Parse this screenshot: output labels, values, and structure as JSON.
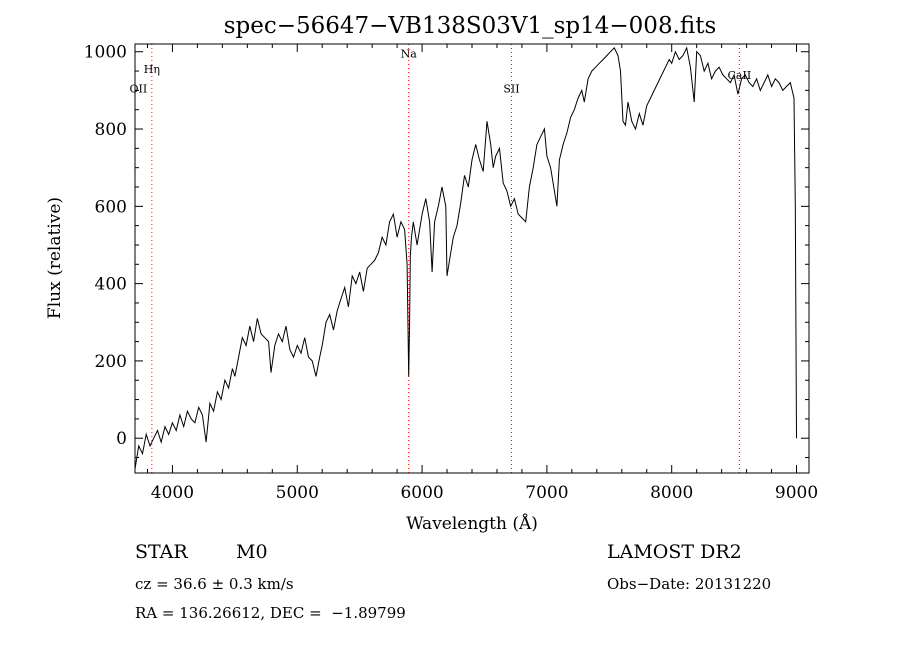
{
  "chart_data": {
    "type": "line",
    "title": "spec−56647−VB138S03V1_sp14−008.fits",
    "xlabel": "Wavelength (Å)",
    "ylabel": "Flux (relative)",
    "xlim": [
      3700,
      9100
    ],
    "ylim": [
      -90,
      1020
    ],
    "xticks": [
      4000,
      5000,
      6000,
      7000,
      8000,
      9000
    ],
    "yticks": [
      0,
      200,
      400,
      600,
      800,
      1000
    ],
    "grid": false,
    "series": [
      {
        "x": [
          3700,
          3730,
          3760,
          3790,
          3820,
          3850,
          3880,
          3910,
          3940,
          3970,
          4000,
          4030,
          4060,
          4090,
          4120,
          4150,
          4180,
          4210,
          4240,
          4270,
          4300,
          4330,
          4360,
          4390,
          4420,
          4450,
          4480,
          4500,
          4530,
          4560,
          4590,
          4620,
          4650,
          4680,
          4710,
          4740,
          4770,
          4790,
          4820,
          4850,
          4880,
          4910,
          4940,
          4970,
          5000,
          5030,
          5060,
          5090,
          5120,
          5150,
          5180,
          5200,
          5230,
          5260,
          5290,
          5320,
          5350,
          5380,
          5410,
          5440,
          5470,
          5500,
          5530,
          5560,
          5590,
          5620,
          5650,
          5680,
          5710,
          5740,
          5770,
          5800,
          5830,
          5860,
          5880,
          5893,
          5900,
          5906,
          5915,
          5930,
          5960,
          6000,
          6030,
          6060,
          6080,
          6100,
          6130,
          6160,
          6190,
          6200,
          6220,
          6250,
          6280,
          6310,
          6340,
          6370,
          6400,
          6430,
          6460,
          6490,
          6520,
          6550,
          6570,
          6590,
          6620,
          6650,
          6680,
          6710,
          6740,
          6770,
          6800,
          6830,
          6860,
          6890,
          6920,
          6950,
          6980,
          7000,
          7030,
          7060,
          7080,
          7100,
          7130,
          7160,
          7190,
          7220,
          7250,
          7280,
          7300,
          7330,
          7360,
          7390,
          7420,
          7450,
          7480,
          7510,
          7540,
          7570,
          7590,
          7610,
          7630,
          7650,
          7680,
          7710,
          7740,
          7770,
          7800,
          7830,
          7860,
          7890,
          7920,
          7950,
          7980,
          8000,
          8030,
          8060,
          8090,
          8120,
          8150,
          8180,
          8200,
          8230,
          8260,
          8290,
          8320,
          8350,
          8380,
          8410,
          8440,
          8470,
          8500,
          8530,
          8560,
          8590,
          8620,
          8650,
          8680,
          8710,
          8740,
          8770,
          8800,
          8830,
          8860,
          8890,
          8920,
          8950,
          8980,
          8990,
          9000
        ],
        "values": [
          -80,
          -20,
          -40,
          10,
          -20,
          0,
          20,
          -10,
          30,
          10,
          40,
          20,
          60,
          30,
          70,
          50,
          40,
          80,
          60,
          -10,
          90,
          70,
          120,
          100,
          150,
          130,
          180,
          160,
          210,
          260,
          240,
          290,
          250,
          310,
          270,
          260,
          250,
          170,
          240,
          270,
          250,
          290,
          230,
          210,
          240,
          220,
          260,
          210,
          200,
          160,
          210,
          240,
          300,
          320,
          280,
          330,
          360,
          390,
          340,
          420,
          400,
          430,
          380,
          440,
          450,
          460,
          480,
          520,
          500,
          560,
          580,
          520,
          560,
          540,
          450,
          160,
          300,
          470,
          520,
          560,
          500,
          580,
          620,
          560,
          430,
          560,
          600,
          650,
          600,
          420,
          460,
          520,
          550,
          610,
          680,
          650,
          720,
          760,
          720,
          690,
          820,
          760,
          700,
          730,
          750,
          660,
          640,
          600,
          620,
          580,
          570,
          560,
          650,
          700,
          760,
          780,
          800,
          730,
          700,
          640,
          600,
          720,
          760,
          790,
          830,
          850,
          880,
          900,
          870,
          930,
          950,
          960,
          970,
          980,
          990,
          1000,
          1010,
          990,
          950,
          820,
          810,
          870,
          820,
          800,
          840,
          810,
          860,
          880,
          900,
          920,
          940,
          960,
          980,
          970,
          1000,
          980,
          990,
          1010,
          960,
          870,
          1000,
          990,
          950,
          970,
          930,
          950,
          960,
          940,
          930,
          920,
          940,
          890,
          930,
          940,
          920,
          910,
          930,
          900,
          920,
          940,
          910,
          930,
          920,
          900,
          910,
          920,
          880,
          600,
          0
        ]
      }
    ],
    "annotations": [
      {
        "label": "Hη",
        "x": 3835,
        "y": 945
      },
      {
        "label": "OII",
        "x": 3727,
        "y": 895
      },
      {
        "label": "Na",
        "x": 5893,
        "y": 985
      },
      {
        "label": "SII",
        "x": 6716,
        "y": 895
      },
      {
        "label": "CaII",
        "x": 8542,
        "y": 930
      }
    ],
    "line_markers": [
      3835,
      5893,
      6716,
      8542
    ]
  },
  "info": {
    "class": "STAR",
    "subclass": "M0",
    "survey": "LAMOST DR2",
    "cz": "cz = 36.6 ± 0.3 km/s",
    "obs_date": "Obs−Date: 20131220",
    "coords": "RA = 136.26612, DEC =  −1.89799"
  },
  "colors": {
    "spectrum": "#000000",
    "marker": "#ff0000",
    "axes": "#000000"
  }
}
